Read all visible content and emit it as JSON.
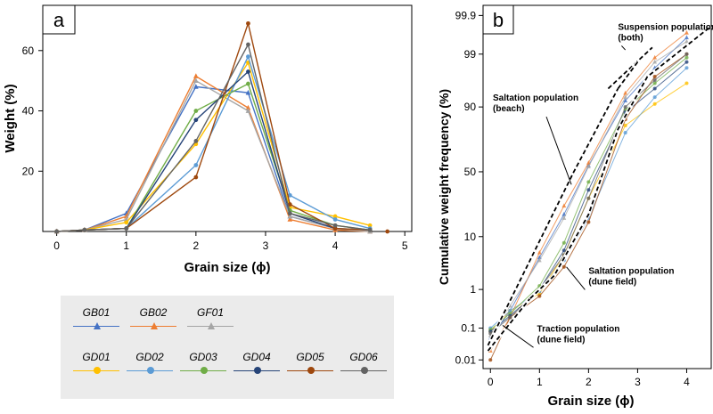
{
  "panel_a_label": "a",
  "panel_b_label": "b",
  "series_styles": [
    {
      "name": "GB01",
      "color": "#4472c4",
      "marker": "triangle"
    },
    {
      "name": "GB02",
      "color": "#ed7d31",
      "marker": "triangle"
    },
    {
      "name": "GF01",
      "color": "#a5a5a5",
      "marker": "triangle"
    },
    {
      "name": "GD01",
      "color": "#ffc000",
      "marker": "circle"
    },
    {
      "name": "GD02",
      "color": "#5b9bd5",
      "marker": "circle"
    },
    {
      "name": "GD03",
      "color": "#70ad47",
      "marker": "circle"
    },
    {
      "name": "GD04",
      "color": "#264478",
      "marker": "circle"
    },
    {
      "name": "GD05",
      "color": "#9e480e",
      "marker": "circle"
    },
    {
      "name": "GD06",
      "color": "#636363",
      "marker": "circle"
    }
  ],
  "legend": {
    "row1": [
      "GB01",
      "GB02",
      "GF01"
    ],
    "row2": [
      "GD01",
      "GD02",
      "GD03",
      "GD04",
      "GD05",
      "GD06"
    ]
  },
  "chart_data": [
    {
      "type": "line",
      "panel": "a",
      "xlabel": "Grain size (ϕ)",
      "ylabel": "Weight (%)",
      "xlim": [
        -0.2,
        5.1
      ],
      "ylim": [
        0,
        75
      ],
      "xticks": [
        "0",
        "1",
        "2",
        "3",
        "4",
        "5"
      ],
      "yticks": [
        "20",
        "40",
        "60"
      ],
      "x": [
        0,
        0.4,
        1.0,
        2.0,
        2.75,
        3.35,
        4.0,
        4.5
      ],
      "series": [
        {
          "name": "GB01",
          "values": [
            0,
            0.5,
            6,
            48,
            46,
            5,
            1,
            0
          ]
        },
        {
          "name": "GB02",
          "values": [
            0,
            0.5,
            5,
            51.5,
            41,
            4,
            0.5,
            0
          ]
        },
        {
          "name": "GF01",
          "values": [
            0,
            0.5,
            4,
            50,
            40,
            5,
            1,
            0
          ]
        },
        {
          "name": "GD01",
          "values": [
            0,
            0.5,
            3,
            29,
            56,
            8,
            5,
            2
          ]
        },
        {
          "name": "GD02",
          "values": [
            0,
            0.5,
            1,
            22,
            58,
            12,
            4,
            1
          ]
        },
        {
          "name": "GD03",
          "values": [
            0,
            0.5,
            1,
            40,
            49,
            7,
            2,
            0.5
          ]
        },
        {
          "name": "GD04",
          "values": [
            0,
            0.5,
            1,
            37,
            53,
            6,
            1,
            0.5
          ]
        },
        {
          "name": "GD05",
          "values": [
            0,
            0.5,
            1,
            18,
            69,
            9,
            1,
            0.5
          ]
        },
        {
          "name": "GD06",
          "values": [
            0,
            0.5,
            1,
            30,
            62,
            6,
            2,
            0.5
          ]
        }
      ],
      "extra_points": [
        {
          "name": "GD05",
          "x": 4.75,
          "y": 0
        }
      ]
    },
    {
      "type": "line",
      "panel": "b",
      "xlabel": "Grain size (ϕ)",
      "ylabel": "Cumulative weight frequency (%)",
      "yscale": "probability",
      "xlim": [
        -0.15,
        4.5
      ],
      "ylim": [
        0.005,
        99.95
      ],
      "xticks": [
        "0",
        "1",
        "2",
        "3",
        "4"
      ],
      "yticks": [
        "0.01",
        "0.1",
        "1",
        "10",
        "50",
        "90",
        "99",
        "99.9"
      ],
      "x": [
        0,
        0.4,
        1.0,
        1.5,
        2.0,
        2.75,
        3.35,
        4.0
      ],
      "series": [
        {
          "name": "GB01",
          "values": [
            0.05,
            0.3,
            4.5,
            20,
            55,
            92,
            98,
            99.6
          ]
        },
        {
          "name": "GB02",
          "values": [
            0.02,
            0.2,
            5.5,
            25,
            57,
            94,
            98.8,
            99.7
          ]
        },
        {
          "name": "GF01",
          "values": [
            0.06,
            0.4,
            4,
            18,
            54,
            93,
            98.5,
            99.5
          ]
        },
        {
          "name": "GD01",
          "values": [
            0.08,
            0.3,
            0.8,
            5,
            30,
            82,
            91,
            96
          ]
        },
        {
          "name": "GD02",
          "values": [
            0.1,
            0.3,
            0.9,
            4,
            18,
            78,
            93,
            98
          ]
        },
        {
          "name": "GD03",
          "values": [
            0.09,
            0.25,
            1.2,
            8,
            42,
            89,
            96,
            98.8
          ]
        },
        {
          "name": "GD04",
          "values": [
            0.08,
            0.22,
            1,
            6,
            36,
            88,
            95,
            98.5
          ]
        },
        {
          "name": "GD05",
          "values": [
            0.01,
            0.2,
            0.7,
            3,
            16,
            85,
            97,
            99
          ]
        },
        {
          "name": "GD06",
          "values": [
            0.07,
            0.2,
            1,
            5,
            30,
            90,
            96.5,
            99
          ]
        }
      ],
      "fit_lines": [
        {
          "name": "saltation-beach",
          "points": [
            [
              -0.05,
              0.03
            ],
            [
              1.7,
              50
            ],
            [
              2.6,
              95
            ]
          ]
        },
        {
          "name": "suspension",
          "points": [
            [
              2.4,
              95
            ],
            [
              3.3,
              99.3
            ]
          ]
        },
        {
          "name": "saltation-dune",
          "points": [
            [
              0.6,
              0.35
            ],
            [
              1.3,
              2
            ],
            [
              2.0,
              20
            ],
            [
              2.6,
              80
            ],
            [
              3.2,
              97
            ],
            [
              4.5,
              99.8
            ]
          ]
        },
        {
          "name": "traction",
          "points": [
            [
              -0.05,
              0.02
            ],
            [
              0.8,
              0.6
            ]
          ]
        },
        {
          "name": "beach-upper",
          "points": [
            [
              2.6,
              95
            ],
            [
              3.0,
              98.5
            ]
          ]
        }
      ],
      "annotations": [
        {
          "text": [
            "Suspension population",
            "(both)"
          ],
          "x": 2.6,
          "y": 99.75,
          "ax": 2.75,
          "ay": 99.2
        },
        {
          "text": [
            "Saltation population",
            "(beach)"
          ],
          "x": 0.05,
          "y": 92,
          "ax": 1.65,
          "ay": 40
        },
        {
          "text": [
            "Saltation population",
            "(dune field)"
          ],
          "x": 2.0,
          "y": 2.2,
          "ax": 1.55,
          "ay": 3
        },
        {
          "text": [
            "Traction population",
            "(dune field)"
          ],
          "x": 0.95,
          "y": 0.08,
          "ax": 0.25,
          "ay": 0.12
        }
      ]
    }
  ]
}
